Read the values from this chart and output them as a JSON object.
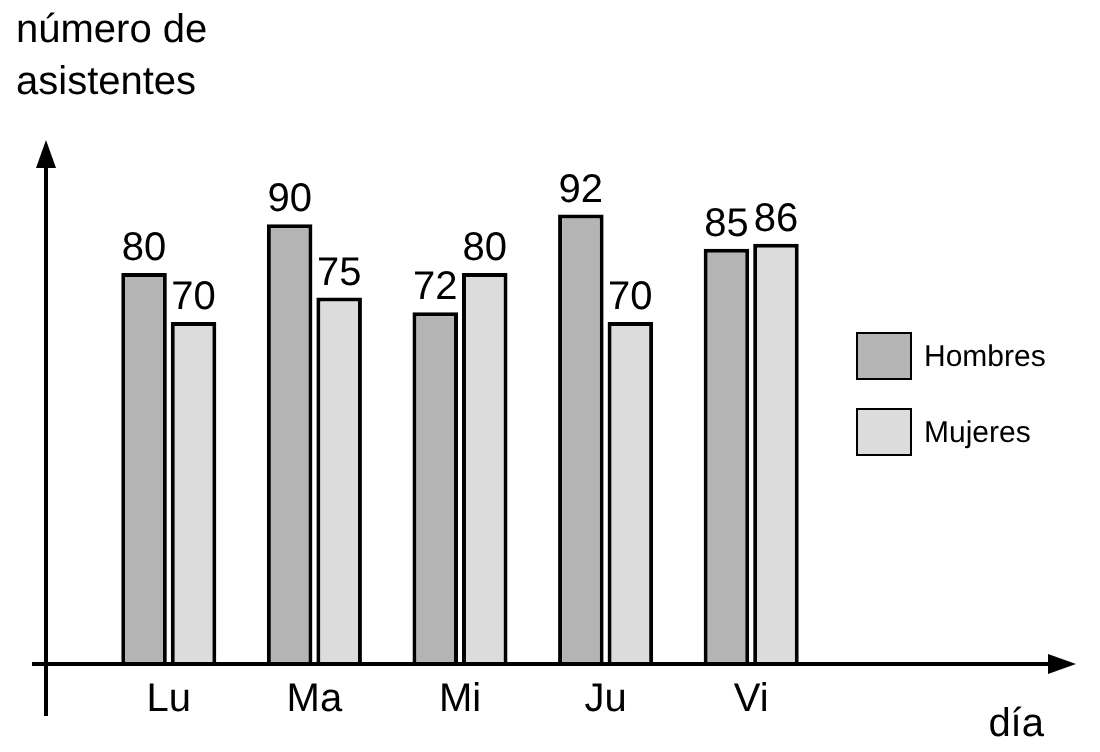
{
  "chart_data": {
    "type": "bar",
    "xlabel": "día",
    "ylabel": "número de asistentes",
    "categories": [
      "Lu",
      "Ma",
      "Mi",
      "Ju",
      "Vi"
    ],
    "series": [
      {
        "name": "Hombres",
        "color": "#b4b4b4",
        "values": [
          80,
          90,
          72,
          92,
          85
        ]
      },
      {
        "name": "Mujeres",
        "color": "#dcdcdc",
        "values": [
          70,
          75,
          80,
          70,
          86
        ]
      }
    ],
    "data_labels": true,
    "grid": false,
    "legend": "right"
  }
}
